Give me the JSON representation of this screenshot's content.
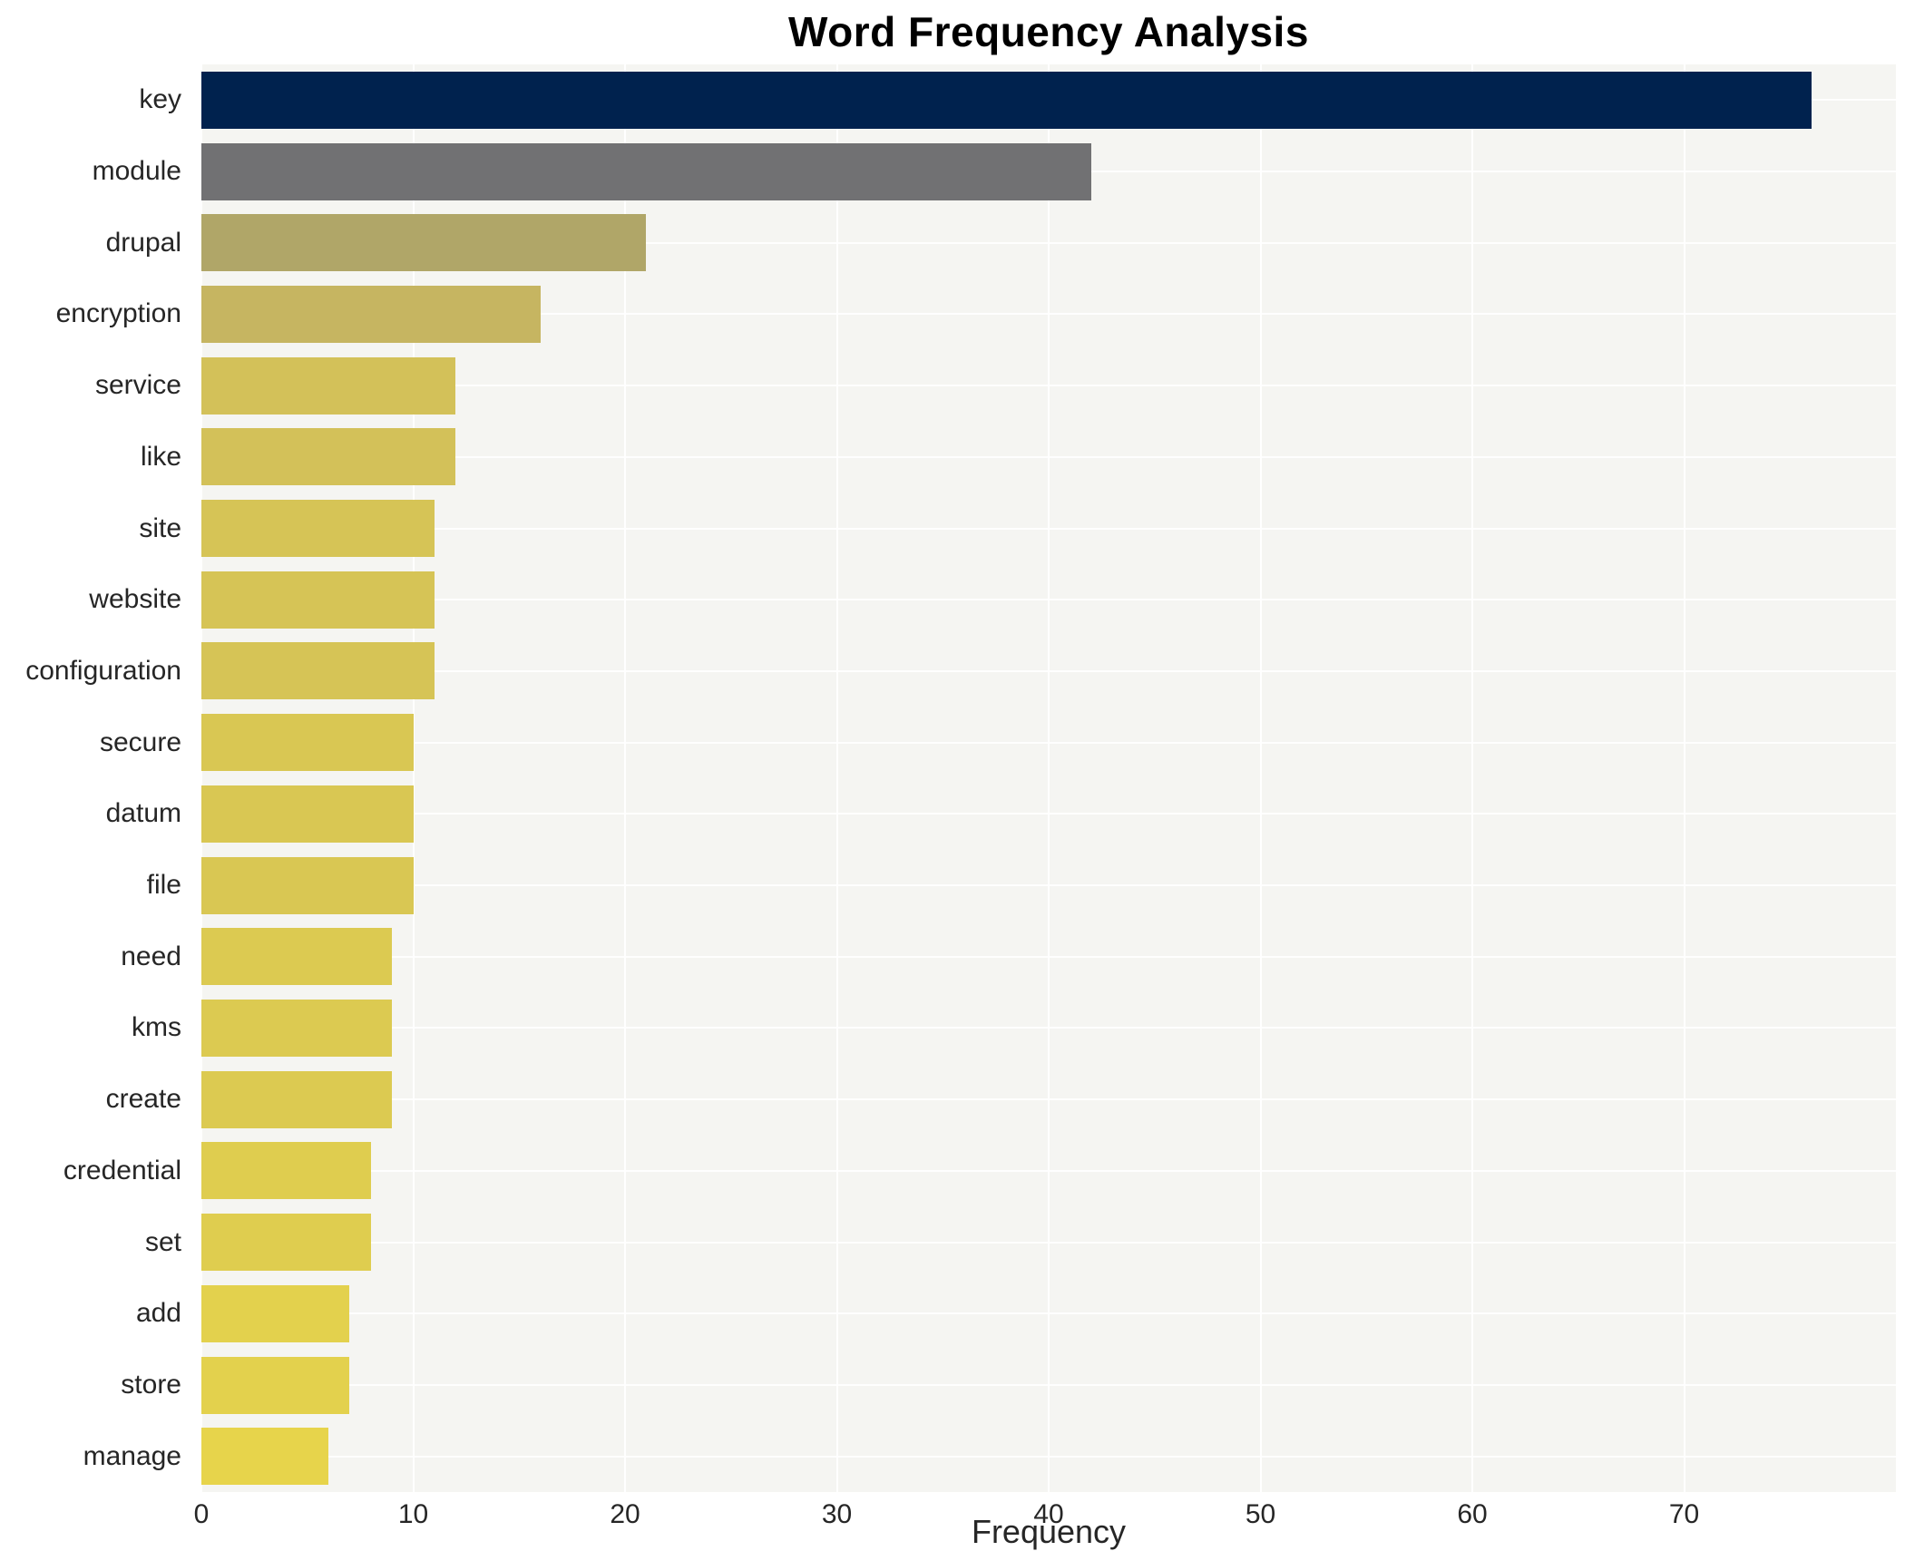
{
  "chart_data": {
    "type": "bar",
    "orientation": "horizontal",
    "title": "Word Frequency Analysis",
    "xlabel": "Frequency",
    "ylabel": "",
    "xlim": [
      0,
      80
    ],
    "xticks": [
      0,
      10,
      20,
      30,
      40,
      50,
      60,
      70
    ],
    "grid": true,
    "legend": false,
    "plot_background": "#f5f5f2",
    "grid_color": "#ffffff",
    "categories": [
      "key",
      "module",
      "drupal",
      "encryption",
      "service",
      "like",
      "site",
      "website",
      "configuration",
      "secure",
      "datum",
      "file",
      "need",
      "kms",
      "create",
      "credential",
      "set",
      "add",
      "store",
      "manage"
    ],
    "values": [
      76,
      42,
      21,
      16,
      12,
      12,
      11,
      11,
      11,
      10,
      10,
      10,
      9,
      9,
      9,
      8,
      8,
      7,
      7,
      6
    ],
    "bar_colors": [
      "#00224e",
      "#717173",
      "#b0a668",
      "#c6b561",
      "#d3c159",
      "#d3c159",
      "#d6c456",
      "#d6c456",
      "#d6c456",
      "#d9c753",
      "#d9c753",
      "#d9c753",
      "#dcca51",
      "#dcca51",
      "#dcca51",
      "#dfcd4f",
      "#dfcd4f",
      "#e3d14d",
      "#e3d14d",
      "#e7d44b"
    ]
  }
}
